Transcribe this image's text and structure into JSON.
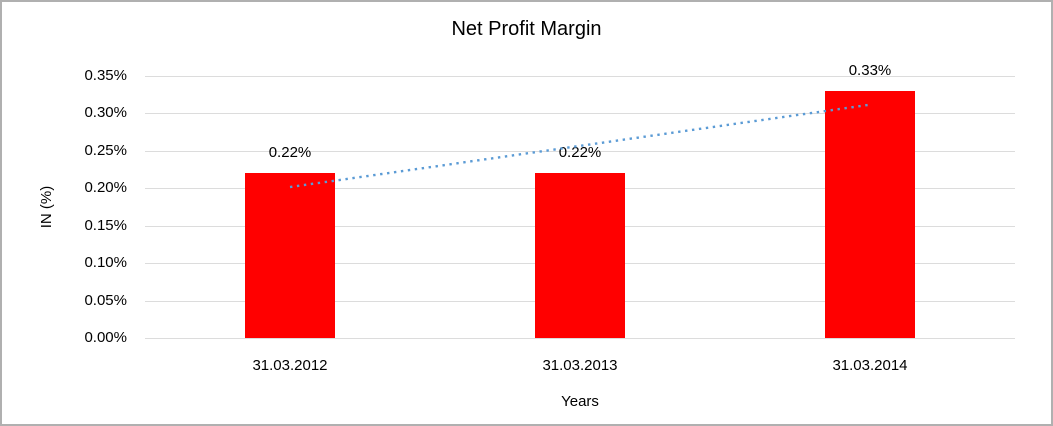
{
  "chart_data": {
    "type": "bar",
    "title": "Net Profit Margin",
    "xlabel": "Years",
    "ylabel": "IN (%)",
    "categories": [
      "31.03.2012",
      "31.03.2013",
      "31.03.2014"
    ],
    "values": [
      0.22,
      0.22,
      0.33
    ],
    "data_labels": [
      "0.22%",
      "0.22%",
      "0.33%"
    ],
    "ytick_labels": [
      "0.35%",
      "0.30%",
      "0.25%",
      "0.20%",
      "0.15%",
      "0.10%",
      "0.05%",
      "0.00%"
    ],
    "ylim": [
      0,
      0.35
    ],
    "ytick_step": 0.05,
    "grid": true,
    "legend": "none",
    "trendline": {
      "type": "linear",
      "style": "dotted",
      "enabled": true
    },
    "colors": {
      "bar": "#ff0000",
      "trendline": "#5b9bd5",
      "gridline": "#dcdcdc",
      "axis_line": "#c8c8c8",
      "text": "#000000",
      "border": "#b0b0b0",
      "background": "#ffffff"
    }
  }
}
